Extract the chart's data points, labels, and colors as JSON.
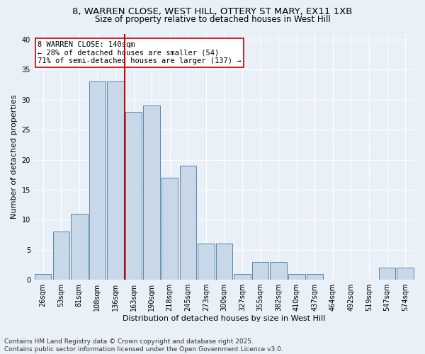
{
  "title1": "8, WARREN CLOSE, WEST HILL, OTTERY ST MARY, EX11 1XB",
  "title2": "Size of property relative to detached houses in West Hill",
  "xlabel": "Distribution of detached houses by size in West Hill",
  "ylabel": "Number of detached properties",
  "footer": "Contains HM Land Registry data © Crown copyright and database right 2025.\nContains public sector information licensed under the Open Government Licence v3.0.",
  "categories": [
    "26sqm",
    "53sqm",
    "81sqm",
    "108sqm",
    "136sqm",
    "163sqm",
    "190sqm",
    "218sqm",
    "245sqm",
    "273sqm",
    "300sqm",
    "327sqm",
    "355sqm",
    "382sqm",
    "410sqm",
    "437sqm",
    "464sqm",
    "492sqm",
    "519sqm",
    "547sqm",
    "574sqm"
  ],
  "values": [
    1,
    8,
    11,
    33,
    33,
    28,
    29,
    17,
    19,
    6,
    6,
    1,
    3,
    3,
    1,
    1,
    0,
    0,
    0,
    2,
    2
  ],
  "bar_color": "#c8d8e8",
  "bar_edge_color": "#5588aa",
  "red_line_index": 5,
  "red_line_color": "#cc0000",
  "annotation_text": "8 WARREN CLOSE: 140sqm\n← 28% of detached houses are smaller (54)\n71% of semi-detached houses are larger (137) →",
  "annotation_box_color": "#ffffff",
  "annotation_box_edge": "#cc0000",
  "ylim": [
    0,
    41
  ],
  "yticks": [
    0,
    5,
    10,
    15,
    20,
    25,
    30,
    35,
    40
  ],
  "bg_color": "#eaf0f8",
  "plot_bg_color": "#eaf0f8",
  "grid_color": "#ffffff",
  "title_fontsize": 9.5,
  "subtitle_fontsize": 8.5,
  "axis_label_fontsize": 8,
  "tick_fontsize": 7,
  "footer_fontsize": 6.5,
  "annotation_fontsize": 7.5
}
